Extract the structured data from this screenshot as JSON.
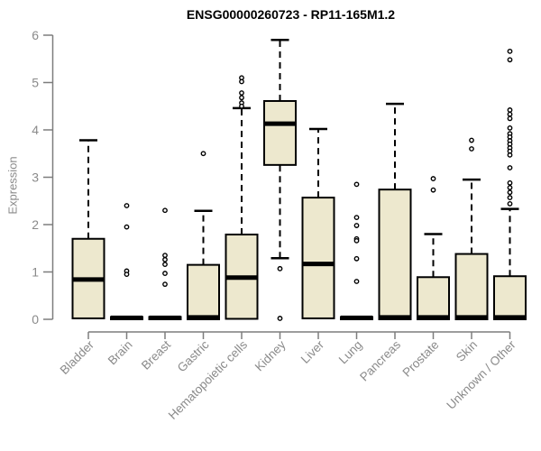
{
  "chart_data": {
    "type": "boxplot",
    "title": "ENSG00000260723 - RP11-165M1.2",
    "xlabel": "",
    "ylabel": "Expression",
    "ylim": [
      0,
      6
    ],
    "yticks": [
      0,
      1,
      2,
      3,
      4,
      5,
      6
    ],
    "grid": false,
    "legend": false,
    "colors": {
      "box_fill": "#EDE8CE",
      "box_stroke": "#000000",
      "median": "#000000",
      "whisker": "#000000",
      "axis_line": "#7d7d7d",
      "axis_text": "#8a8a8a",
      "title_text": "#000000",
      "outlier_stroke": "#000000",
      "outlier_fill": "#ffffff",
      "background": "#ffffff"
    },
    "categories": [
      "Bladder",
      "Brain",
      "Breast",
      "Gastric",
      "Hematopoietic cells",
      "Kidney",
      "Liver",
      "Lung",
      "Pancreas",
      "Prostate",
      "Skin",
      "Unknown / Other"
    ],
    "boxes": [
      {
        "category": "Bladder",
        "low": 0,
        "q1": 0.02,
        "median": 0.84,
        "q3": 1.7,
        "high": 3.78,
        "outliers": []
      },
      {
        "category": "Brain",
        "low": 0,
        "q1": 0,
        "median": 0.03,
        "q3": 0.05,
        "high": 0.05,
        "outliers": [
          2.4,
          1.95,
          1.02,
          0.95
        ]
      },
      {
        "category": "Breast",
        "low": 0,
        "q1": 0,
        "median": 0.03,
        "q3": 0.05,
        "high": 0.05,
        "outliers": [
          2.3,
          1.35,
          1.26,
          1.16,
          0.97,
          0.74
        ]
      },
      {
        "category": "Gastric",
        "low": 0,
        "q1": 0,
        "median": 0.04,
        "q3": 1.15,
        "high": 2.29,
        "outliers": [
          3.5
        ]
      },
      {
        "category": "Hematopoietic cells",
        "low": 0,
        "q1": 0.01,
        "median": 0.88,
        "q3": 1.79,
        "high": 4.46,
        "outliers": [
          5.1,
          5.02,
          4.78,
          4.68,
          4.57,
          4.5
        ]
      },
      {
        "category": "Kidney",
        "low": 1.29,
        "q1": 3.26,
        "median": 4.13,
        "q3": 4.61,
        "high": 5.9,
        "outliers": [
          1.07,
          0.02
        ]
      },
      {
        "category": "Liver",
        "low": 0,
        "q1": 0.02,
        "median": 1.17,
        "q3": 2.57,
        "high": 4.02,
        "outliers": []
      },
      {
        "category": "Lung",
        "low": 0,
        "q1": 0,
        "median": 0.03,
        "q3": 0.05,
        "high": 0.05,
        "outliers": [
          2.85,
          2.15,
          1.98,
          1.7,
          1.66,
          1.28,
          0.8
        ]
      },
      {
        "category": "Pancreas",
        "low": 0,
        "q1": 0,
        "median": 0.04,
        "q3": 2.74,
        "high": 4.55,
        "outliers": []
      },
      {
        "category": "Prostate",
        "low": 0,
        "q1": 0,
        "median": 0.04,
        "q3": 0.89,
        "high": 1.8,
        "outliers": [
          2.97,
          2.73
        ]
      },
      {
        "category": "Skin",
        "low": 0,
        "q1": 0,
        "median": 0.04,
        "q3": 1.38,
        "high": 2.95,
        "outliers": [
          3.78,
          3.6
        ]
      },
      {
        "category": "Unknown / Other",
        "low": 0,
        "q1": 0,
        "median": 0.04,
        "q3": 0.91,
        "high": 2.33,
        "outliers": [
          5.66,
          5.48,
          4.42,
          4.33,
          4.24,
          4.04,
          3.92,
          3.85,
          3.77,
          3.7,
          3.62,
          3.55,
          3.47,
          3.2,
          2.88,
          2.78,
          2.68,
          2.57,
          2.44
        ]
      }
    ]
  }
}
